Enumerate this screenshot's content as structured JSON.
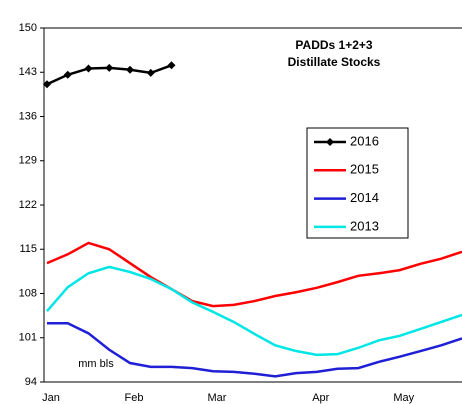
{
  "chart_data": {
    "type": "line",
    "annotations": [
      "PADDs 1+2+3",
      "Distillate Stocks",
      "mm bls"
    ],
    "categories": [
      "Jan",
      null,
      null,
      null,
      "Feb",
      null,
      null,
      null,
      "Mar",
      null,
      null,
      null,
      null,
      "Apr",
      null,
      null,
      null,
      "May",
      null,
      null,
      null
    ],
    "series": [
      {
        "name": "2016",
        "color": "#000000",
        "marker": "diamond",
        "values": [
          141.1,
          142.6,
          143.6,
          143.7,
          143.4,
          142.9,
          144.1,
          null,
          null,
          null,
          null,
          null,
          null,
          null,
          null,
          null,
          null,
          null,
          null,
          null,
          null
        ]
      },
      {
        "name": "2015",
        "color": "#ff0000",
        "values": [
          112.8,
          114.2,
          116.0,
          115.0,
          112.8,
          110.6,
          108.7,
          106.8,
          106.0,
          106.2,
          106.8,
          107.6,
          108.2,
          108.9,
          109.8,
          110.8,
          111.2,
          111.7,
          112.7,
          113.5,
          114.6
        ]
      },
      {
        "name": "2014",
        "color": "#1f1fd6",
        "values": [
          103.3,
          103.3,
          101.7,
          99.1,
          97.0,
          96.4,
          96.4,
          96.2,
          95.7,
          95.6,
          95.3,
          94.9,
          95.4,
          95.6,
          96.1,
          96.2,
          97.2,
          98.0,
          98.9,
          99.8,
          100.9
        ]
      },
      {
        "name": "2013",
        "color": "#00e5e5",
        "values": [
          105.2,
          109.0,
          111.2,
          112.2,
          111.4,
          110.3,
          108.7,
          106.6,
          105.1,
          103.5,
          101.6,
          99.8,
          98.9,
          98.3,
          98.4,
          99.4,
          100.6,
          101.3,
          102.4,
          103.5,
          104.6
        ]
      }
    ],
    "ylim": [
      94,
      150
    ],
    "yticks": [
      94,
      101,
      108,
      115,
      122,
      129,
      136,
      143,
      150
    ]
  }
}
